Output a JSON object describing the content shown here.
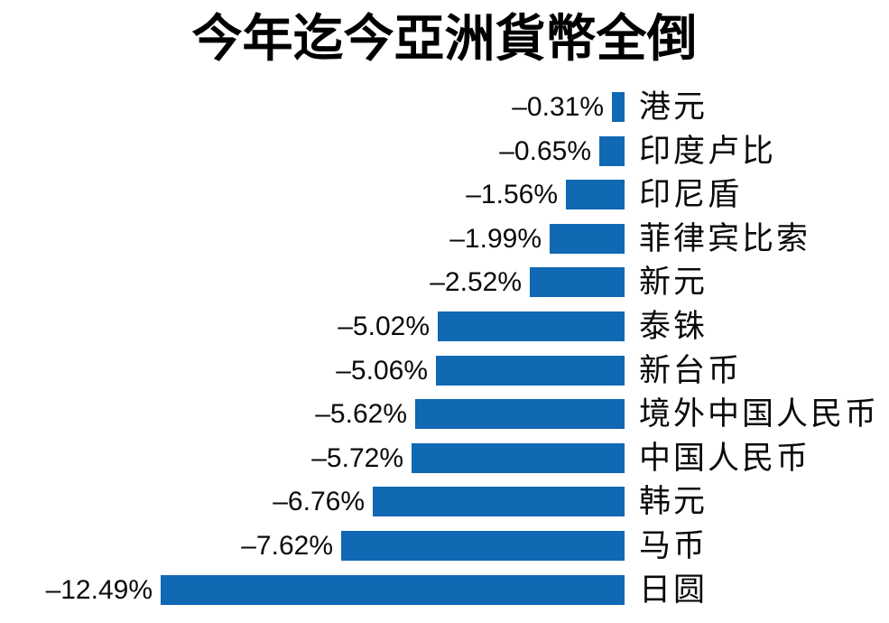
{
  "chart_data": {
    "type": "bar",
    "orientation": "horizontal",
    "alignment": "bars-right-aligned",
    "title": "今年迄今亞洲貨幣全倒",
    "xlabel": "",
    "ylabel": "",
    "unit": "%",
    "xlim": [
      -12.49,
      0
    ],
    "grid": false,
    "legend": "none",
    "bar_color": "#1168b3",
    "text_color": "#0a0a0a",
    "background_color": "#ffffff",
    "categories": [
      "港元",
      "印度卢比",
      "印尼盾",
      "菲律宾比索",
      "新元",
      "泰铢",
      "新台币",
      "境外中国人民币",
      "中国人民币",
      "韩元",
      "马币",
      "日圆"
    ],
    "values": [
      -0.31,
      -0.65,
      -1.56,
      -1.99,
      -2.52,
      -5.02,
      -5.06,
      -5.62,
      -5.72,
      -6.76,
      -7.62,
      -12.49
    ],
    "value_labels": [
      "–0.31%",
      "–0.65%",
      "–1.56%",
      "–1.99%",
      "–2.52%",
      "–5.02%",
      "–5.06%",
      "–5.62%",
      "–5.72%",
      "–6.76%",
      "–7.62%",
      "–12.49%"
    ]
  }
}
